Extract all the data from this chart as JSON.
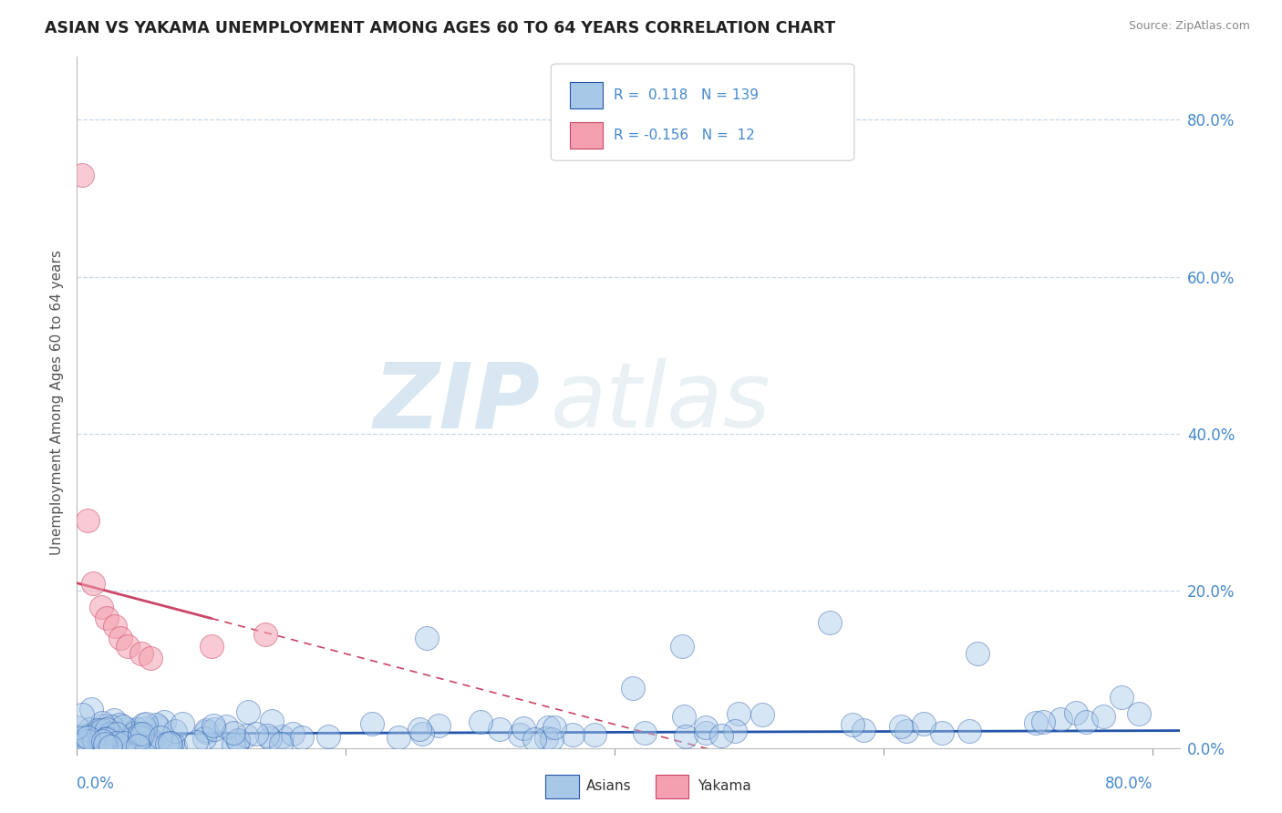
{
  "title": "ASIAN VS YAKAMA UNEMPLOYMENT AMONG AGES 60 TO 64 YEARS CORRELATION CHART",
  "source": "Source: ZipAtlas.com",
  "ylabel": "Unemployment Among Ages 60 to 64 years",
  "xlim": [
    0.0,
    0.82
  ],
  "ylim": [
    0.0,
    0.88
  ],
  "yticks": [
    0.0,
    0.2,
    0.4,
    0.6,
    0.8
  ],
  "ytick_labels": [
    "0.0%",
    "20.0%",
    "40.0%",
    "60.0%",
    "80.0%"
  ],
  "asian_R": 0.118,
  "asian_N": 139,
  "yakama_R": -0.156,
  "yakama_N": 12,
  "asian_color": "#a8c8e8",
  "yakama_color": "#f4a0b0",
  "asian_line_color": "#2255aa",
  "yakama_line_color": "#cc4466",
  "watermark_zip": "ZIP",
  "watermark_atlas": "atlas",
  "background_color": "#ffffff",
  "grid_color": "#c8d8e8",
  "title_color": "#222222",
  "tick_color": "#4488cc",
  "source_color": "#888888"
}
